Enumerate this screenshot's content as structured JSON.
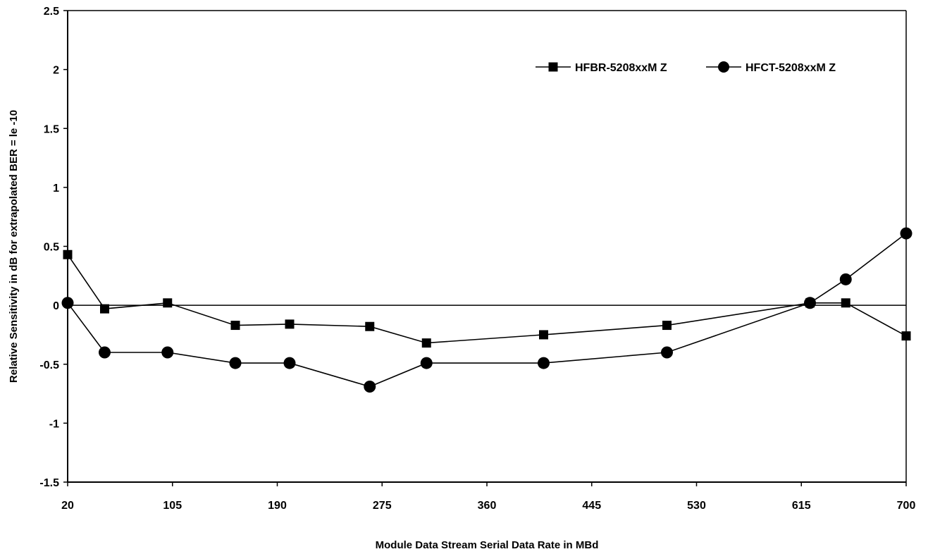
{
  "chart_data": {
    "type": "line",
    "title": "",
    "xlabel": "Module Data Stream Serial Data Rate in MBd",
    "ylabel": "Relative Sensitivity in dB for extrapolated BER = le -10",
    "xlim": [
      20,
      700
    ],
    "ylim": [
      -1.5,
      2.5
    ],
    "x_ticks": [
      20,
      105,
      190,
      275,
      360,
      445,
      530,
      615,
      700
    ],
    "y_ticks": [
      -1.5,
      -1,
      -0.5,
      0,
      0.5,
      1,
      1.5,
      2,
      2.5
    ],
    "x_tick_labels": [
      "20",
      "105",
      "190",
      "275",
      "360",
      "445",
      "530",
      "615",
      "700"
    ],
    "y_tick_labels": [
      "-1.5",
      "-1",
      "-0.5",
      "0",
      "0.5",
      "1",
      "1.5",
      "2",
      "2.5"
    ],
    "grid": false,
    "reference_line_y": 0,
    "legend_position": "top-right",
    "series": [
      {
        "name": "HFBR-5208xxM Z",
        "marker": "square",
        "color": "#000000",
        "points": [
          [
            20,
            0.43
          ],
          [
            50,
            -0.03
          ],
          [
            101,
            0.02
          ],
          [
            156,
            -0.17
          ],
          [
            200,
            -0.16
          ],
          [
            265,
            -0.18
          ],
          [
            311,
            -0.32
          ],
          [
            406,
            -0.25
          ],
          [
            506,
            -0.17
          ],
          [
            622,
            0.02
          ],
          [
            651,
            0.02
          ],
          [
            700,
            -0.26
          ]
        ]
      },
      {
        "name": "HFCT-5208xxM Z",
        "marker": "circle",
        "color": "#000000",
        "points": [
          [
            20,
            0.02
          ],
          [
            50,
            -0.4
          ],
          [
            101,
            -0.4
          ],
          [
            156,
            -0.49
          ],
          [
            200,
            -0.49
          ],
          [
            265,
            -0.69
          ],
          [
            311,
            -0.49
          ],
          [
            406,
            -0.49
          ],
          [
            506,
            -0.4
          ],
          [
            622,
            0.02
          ],
          [
            651,
            0.22
          ],
          [
            700,
            0.61
          ]
        ]
      }
    ]
  }
}
